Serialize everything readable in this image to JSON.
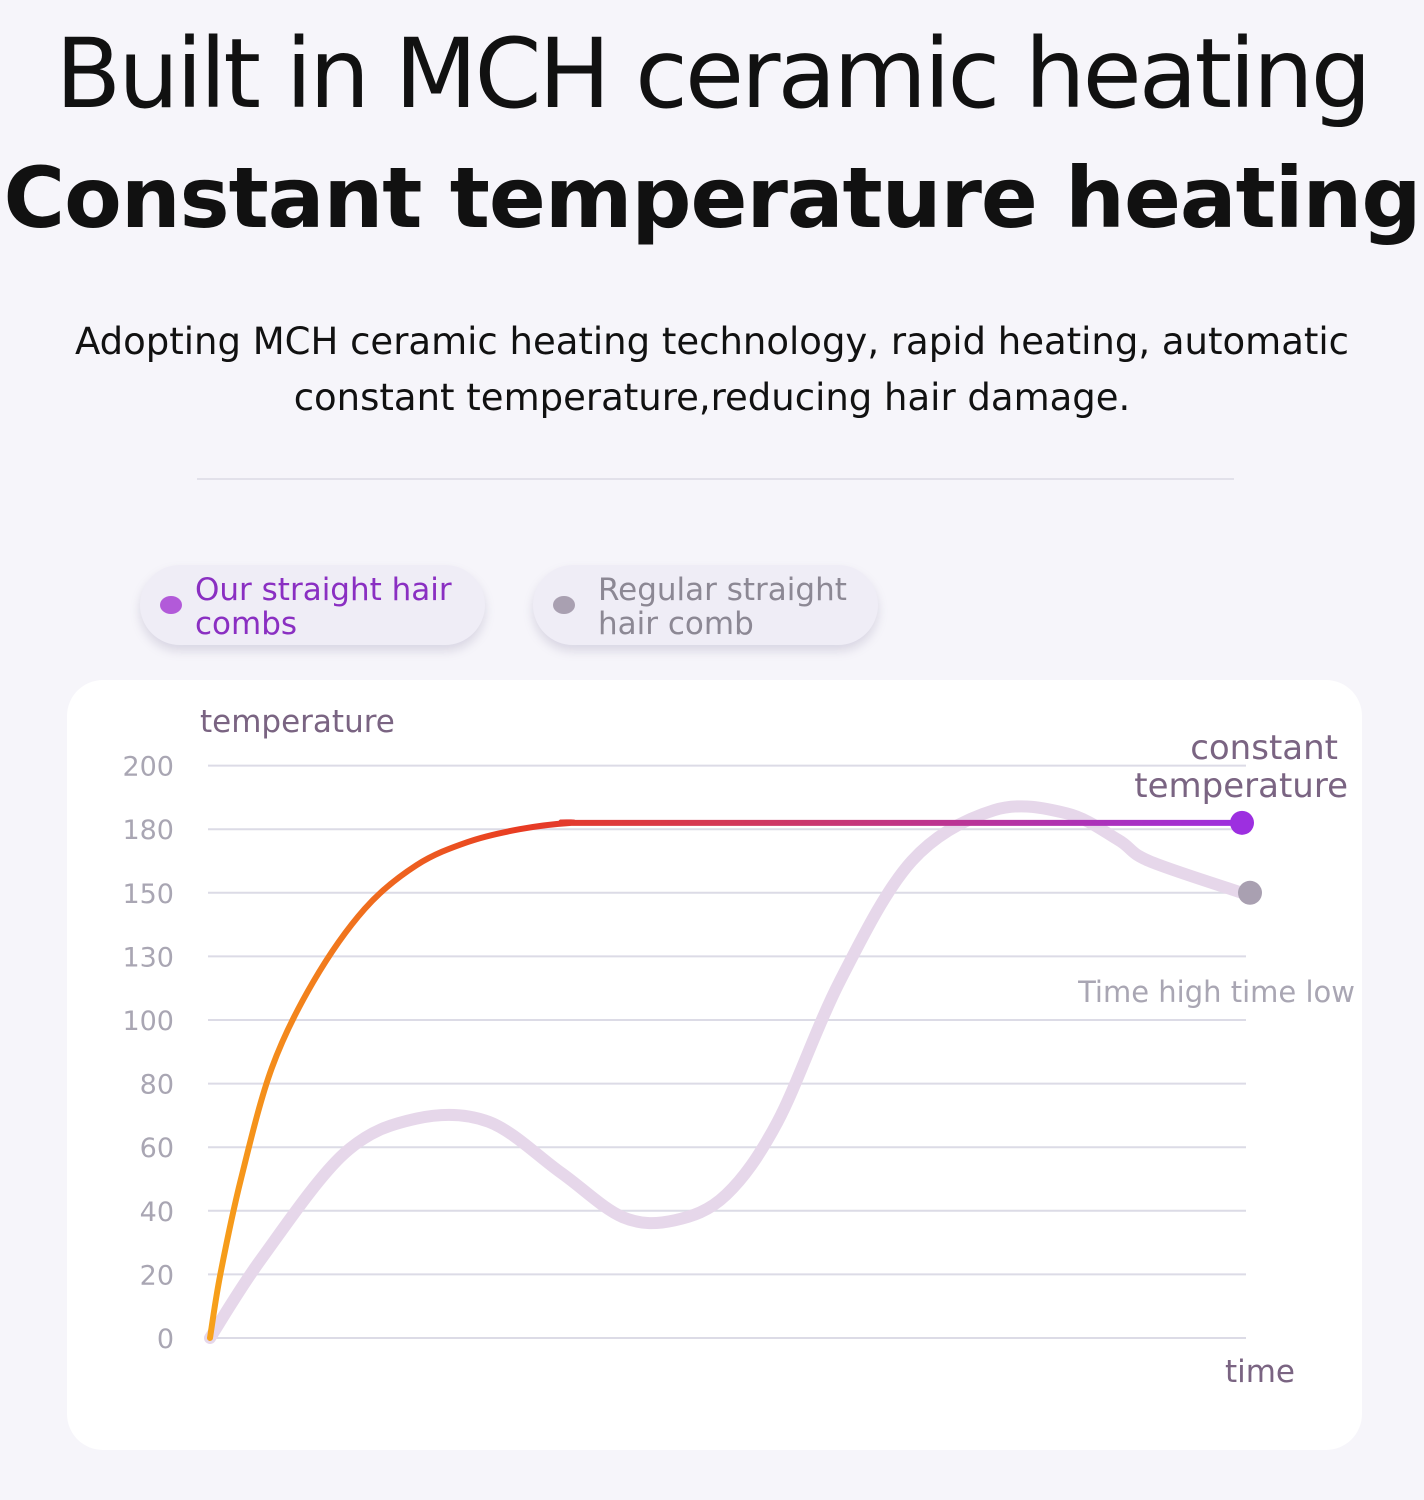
{
  "header": {
    "title": "Built in MCH ceramic heating",
    "subtitle": "Constant temperature heating",
    "description_line1": "Adopting MCH ceramic heating technology, rapid heating, automatic",
    "description_line2": "constant temperature,reducing hair damage."
  },
  "legend": {
    "ours": "Our straight hair combs",
    "regular": "Regular straight hair comb"
  },
  "colors": {
    "ours_start": "#f7a11a",
    "ours_mid": "#e83b22",
    "ours_end": "#9d2fe0",
    "regular": "#e6d7ea",
    "grid": "#dcdbe6",
    "tick": "#a9a6b3",
    "annotation": "#7a6482"
  },
  "chart_data": {
    "type": "line",
    "ylabel": "temperature",
    "xlabel": "time",
    "yticks": [
      0,
      20,
      40,
      60,
      80,
      100,
      130,
      150,
      180,
      200
    ],
    "x_range": [
      0,
      100
    ],
    "series": [
      {
        "name": "Our straight hair combs",
        "x": [
          0,
          1,
          3,
          6,
          10,
          15,
          20,
          25,
          30,
          35,
          40,
          100
        ],
        "y": [
          0,
          20,
          50,
          85,
          118,
          145,
          163,
          174,
          180,
          182,
          182,
          182
        ]
      },
      {
        "name": "Regular straight hair comb",
        "x": [
          0,
          5,
          13,
          20,
          27,
          34,
          40,
          45,
          50,
          55,
          61,
          68,
          76,
          83,
          88,
          91,
          100
        ],
        "y": [
          0,
          25,
          58,
          69,
          68,
          52,
          38,
          37,
          45,
          68,
          118,
          165,
          186,
          185,
          175,
          165,
          150
        ]
      }
    ],
    "annotations": {
      "ours_end": "constant temperature",
      "ours_end_line1": "constant",
      "ours_end_line2": "temperature",
      "regular_end": "Time high time low"
    }
  }
}
